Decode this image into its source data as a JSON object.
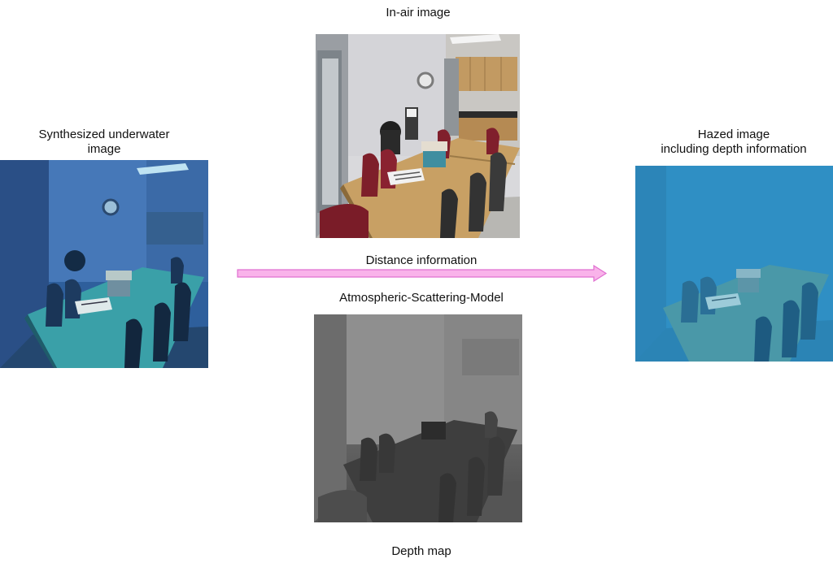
{
  "labels": {
    "in_air": "In-air image",
    "synth_line1": "Synthesized underwater",
    "synth_line2": "image",
    "hazed_line1": "Hazed image",
    "hazed_line2": "including depth information",
    "distance": "Distance information",
    "model": "Atmospheric-Scattering-Model",
    "depth": "Depth map"
  },
  "colors": {
    "arrow_fill": "#f9b3ea",
    "arrow_stroke": "#e070d0",
    "haze": "#2f8fc4",
    "underwater": "#1e5f8a"
  },
  "images": {
    "in_air": "office-kitchen-photo",
    "synthesized": "underwater-style-photo",
    "hazed": "blue-haze-photo",
    "depth": "grayscale-depth-map"
  }
}
